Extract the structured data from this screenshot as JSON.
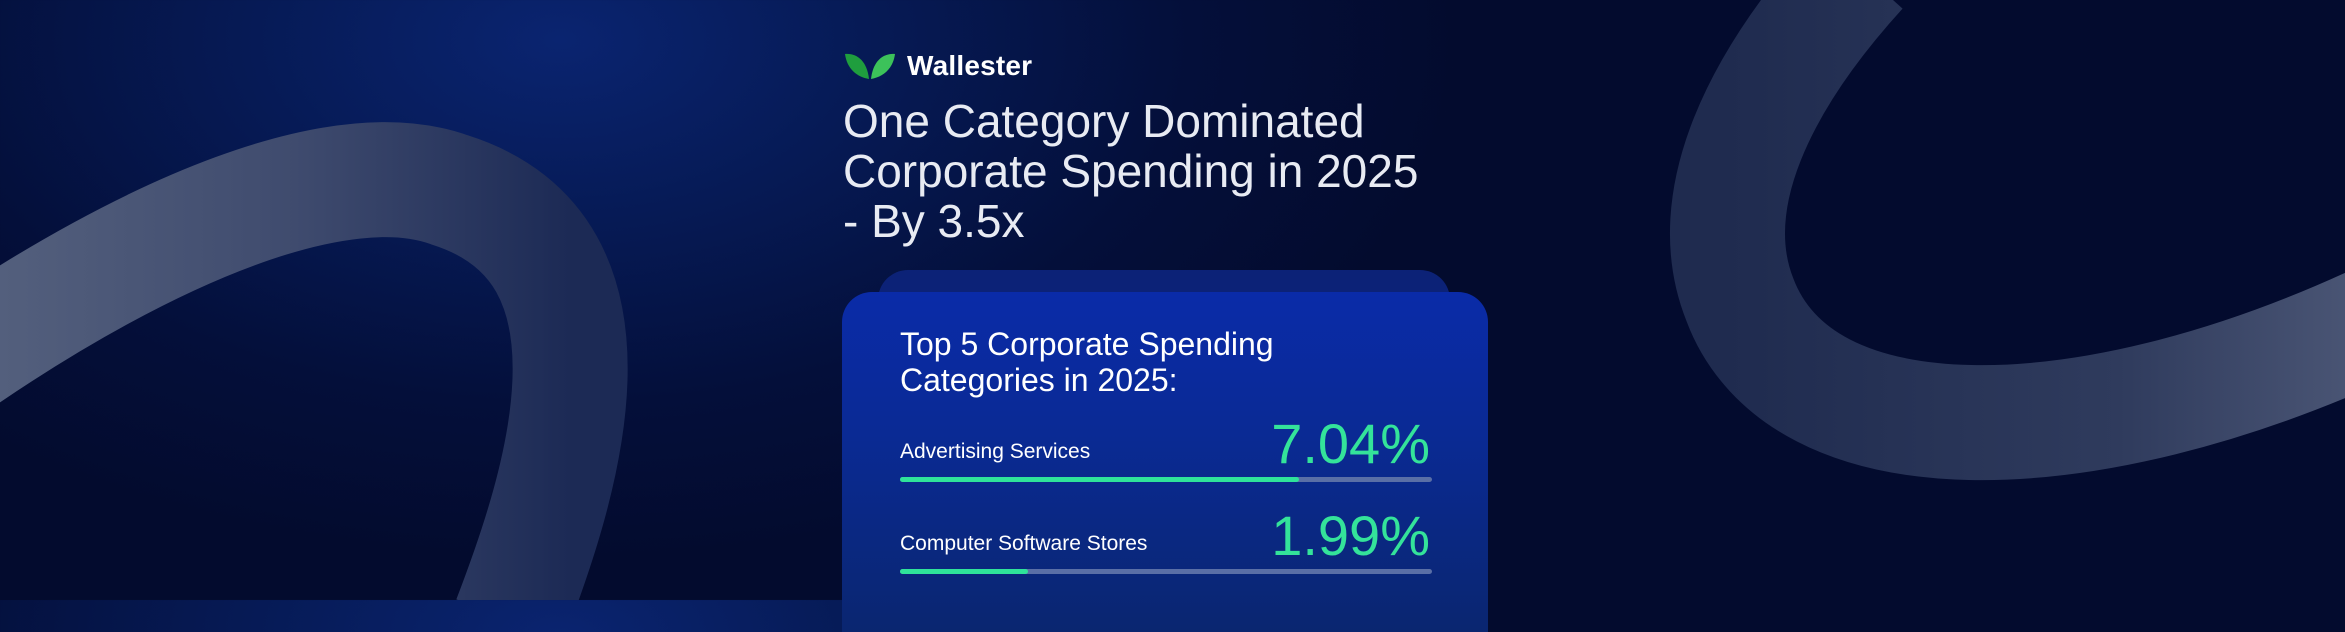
{
  "brand": {
    "name": "Wallester",
    "logo_icon": "leaf-logo-icon",
    "logo_color": "#2fbf4a"
  },
  "headline": {
    "line1": "One Category Dominated",
    "line2": "Corporate Spending in 2025",
    "line3": "- By 3.5x"
  },
  "card": {
    "title_line1": "Top 5 Corporate Spending",
    "title_line2": "Categories in 2025:",
    "items": [
      {
        "label": "Advertising Services",
        "value": "7.04%",
        "fill_fraction": 0.75
      },
      {
        "label": "Computer Software Stores",
        "value": "1.99%",
        "fill_fraction": 0.24
      }
    ]
  },
  "colors": {
    "accent": "#34e39a",
    "background": "#040f3a",
    "card": "#0a2ba8"
  }
}
